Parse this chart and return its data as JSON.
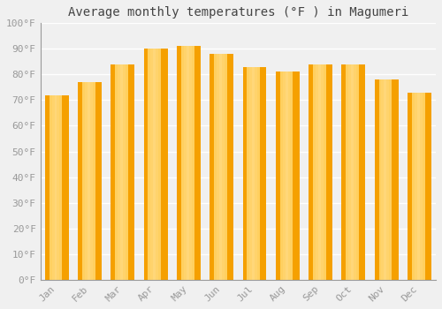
{
  "title": "Average monthly temperatures (°F ) in Magumeri",
  "months": [
    "Jan",
    "Feb",
    "Mar",
    "Apr",
    "May",
    "Jun",
    "Jul",
    "Aug",
    "Sep",
    "Oct",
    "Nov",
    "Dec"
  ],
  "values": [
    72,
    77,
    84,
    90,
    91,
    88,
    83,
    81,
    84,
    84,
    78,
    73
  ],
  "bar_color_center": "#FFD060",
  "bar_color_edge": "#F5A000",
  "ylim": [
    0,
    100
  ],
  "yticks": [
    0,
    10,
    20,
    30,
    40,
    50,
    60,
    70,
    80,
    90,
    100
  ],
  "ytick_labels": [
    "0°F",
    "10°F",
    "20°F",
    "30°F",
    "40°F",
    "50°F",
    "60°F",
    "70°F",
    "80°F",
    "90°F",
    "100°F"
  ],
  "background_color": "#f0f0f0",
  "grid_color": "#ffffff",
  "title_fontsize": 10,
  "tick_fontsize": 8,
  "font_family": "monospace",
  "tick_color": "#999999",
  "title_color": "#444444"
}
